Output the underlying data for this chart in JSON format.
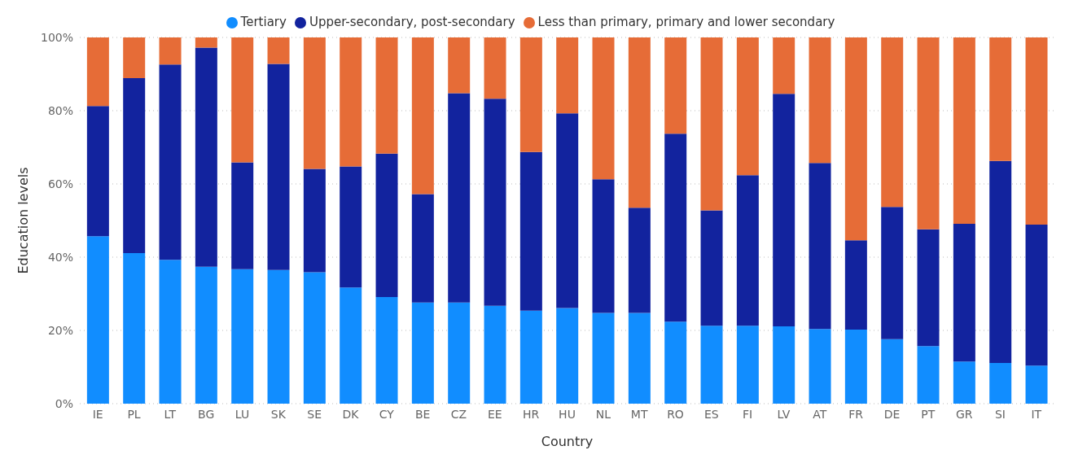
{
  "chart_data": {
    "type": "bar",
    "stacked": true,
    "xlabel": "Country",
    "ylabel": "Education levels",
    "categories": [
      "IE",
      "PL",
      "LT",
      "BG",
      "LU",
      "SK",
      "SE",
      "DK",
      "CY",
      "BE",
      "CZ",
      "EE",
      "HR",
      "HU",
      "NL",
      "MT",
      "RO",
      "ES",
      "FI",
      "LV",
      "AT",
      "FR",
      "DE",
      "PT",
      "GR",
      "SI",
      "IT"
    ],
    "series": [
      {
        "name": "Tertiary",
        "color": "#118dff",
        "values": [
          45.7,
          41.1,
          39.3,
          37.4,
          36.7,
          36.5,
          35.9,
          31.7,
          29.1,
          27.6,
          27.6,
          26.7,
          25.4,
          26.1,
          24.8,
          24.8,
          22.4,
          21.3,
          21.3,
          21.1,
          20.4,
          20.2,
          17.6,
          15.7,
          11.5,
          11.1,
          10.4
        ]
      },
      {
        "name": "Upper-secondary, post-secondary",
        "color": "#12239e",
        "values": [
          35.6,
          47.8,
          53.3,
          59.8,
          29.2,
          56.3,
          28.2,
          33.1,
          39.2,
          29.6,
          57.2,
          56.6,
          43.3,
          53.2,
          36.5,
          28.7,
          51.3,
          31.5,
          41.1,
          63.5,
          45.3,
          24.4,
          36.1,
          31.9,
          37.6,
          55.2,
          38.5
        ]
      },
      {
        "name": "Less than primary, primary and lower secondary",
        "color": "#e66c37",
        "values": [
          18.7,
          11.1,
          7.4,
          2.8,
          34.1,
          7.2,
          35.9,
          35.2,
          31.7,
          42.8,
          15.2,
          16.7,
          31.3,
          20.7,
          38.7,
          46.5,
          26.3,
          47.2,
          37.6,
          15.4,
          34.3,
          55.4,
          46.3,
          52.4,
          50.9,
          33.7,
          51.1
        ]
      }
    ],
    "ylim": [
      0,
      100
    ],
    "yticks": [
      {
        "value": 0,
        "label": "0%"
      },
      {
        "value": 20,
        "label": "20%"
      },
      {
        "value": 40,
        "label": "40%"
      },
      {
        "value": 60,
        "label": "60%"
      },
      {
        "value": 80,
        "label": "80%"
      },
      {
        "value": 100,
        "label": "100%"
      }
    ],
    "grid": "y",
    "legend": "top"
  }
}
